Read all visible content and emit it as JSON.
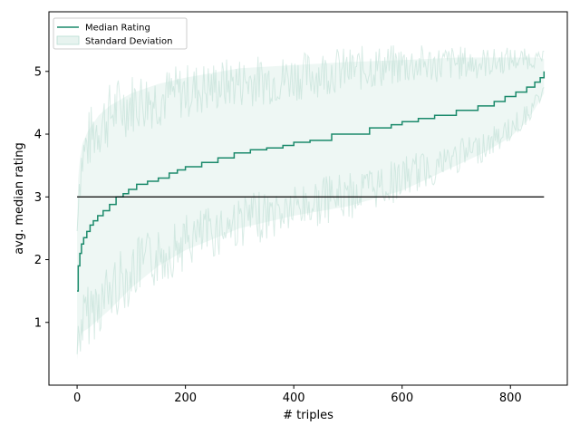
{
  "chart_data": {
    "type": "line",
    "xlabel": "# triples",
    "ylabel": "avg. median rating",
    "xlim": [
      -52,
      905
    ],
    "ylim": [
      0.0,
      5.95
    ],
    "x_ticks": [
      0,
      200,
      400,
      600,
      800
    ],
    "y_ticks": [
      1,
      2,
      3,
      4,
      5
    ],
    "grid": false,
    "legend_position": "top-left",
    "colors": {
      "median": "#1b8a6b",
      "std_fill": "#cfe8e0",
      "std_band": "#b9ddd2",
      "reference": "#000000"
    },
    "series": [
      {
        "name": "Median Rating",
        "x": [
          0,
          2,
          5,
          8,
          12,
          18,
          24,
          30,
          38,
          48,
          60,
          72,
          85,
          95,
          110,
          130,
          150,
          170,
          185,
          200,
          230,
          260,
          290,
          320,
          350,
          380,
          400,
          430,
          470,
          500,
          540,
          580,
          600,
          630,
          660,
          700,
          740,
          770,
          790,
          810,
          830,
          845,
          855,
          862
        ],
        "y": [
          1.5,
          1.9,
          2.1,
          2.25,
          2.35,
          2.45,
          2.55,
          2.62,
          2.7,
          2.78,
          2.88,
          3.0,
          3.05,
          3.12,
          3.2,
          3.25,
          3.3,
          3.38,
          3.43,
          3.48,
          3.55,
          3.62,
          3.7,
          3.75,
          3.78,
          3.82,
          3.87,
          3.9,
          4.0,
          4.0,
          4.1,
          4.15,
          4.2,
          4.25,
          4.3,
          4.38,
          4.45,
          4.52,
          4.6,
          4.67,
          4.75,
          4.83,
          4.9,
          5.0
        ]
      },
      {
        "name": "Standard Deviation",
        "x": [
          0,
          2,
          5,
          10,
          20,
          40,
          60,
          100,
          150,
          200,
          300,
          400,
          500,
          600,
          650,
          700,
          750,
          800,
          830,
          845,
          862
        ],
        "lower": [
          0.4,
          0.6,
          0.75,
          0.85,
          0.9,
          1.05,
          1.2,
          1.55,
          1.9,
          2.15,
          2.5,
          2.7,
          2.85,
          3.1,
          3.3,
          3.5,
          3.7,
          3.95,
          4.2,
          4.4,
          4.65
        ],
        "upper": [
          2.6,
          3.3,
          3.6,
          3.85,
          4.05,
          4.3,
          4.45,
          4.65,
          4.8,
          4.9,
          5.05,
          5.1,
          5.15,
          5.18,
          5.2,
          5.22,
          5.22,
          5.22,
          5.22,
          5.22,
          5.2
        ]
      },
      {
        "name": "",
        "x": [
          0,
          862
        ],
        "y": [
          3.0,
          3.0
        ]
      }
    ]
  }
}
